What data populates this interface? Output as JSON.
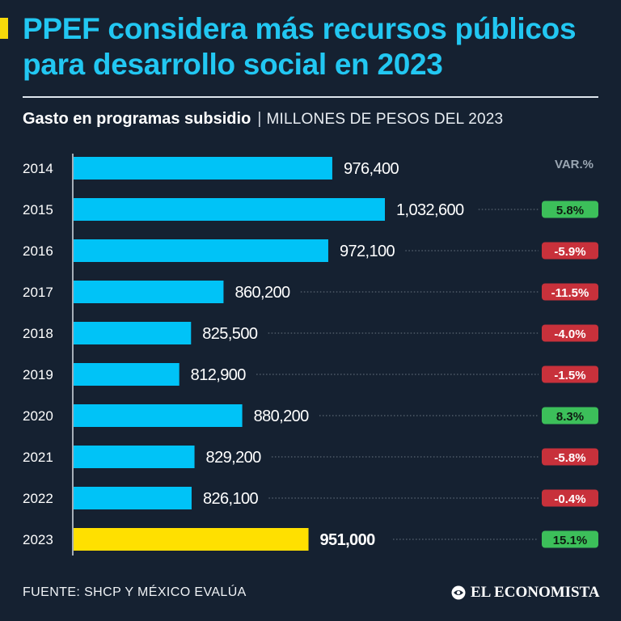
{
  "header": {
    "title": "PPEF considera más recursos públicos para desarrollo social en 2023",
    "subtitle": "Gasto en programas subsidio",
    "separator": "|",
    "unit": "MILLONES DE PESOS DEL 2023"
  },
  "footer": {
    "source": "FUENTE: SHCP Y MÉXICO EVALÚA",
    "brand": "EL ECONOMISTA"
  },
  "colors": {
    "background": "#152131",
    "title": "#22c7f2",
    "bar": "#00c3f7",
    "highlight_bar": "#ffe000",
    "positive": "#3cbf5a",
    "negative": "#c8313b"
  },
  "chart_data": {
    "type": "bar",
    "orientation": "horizontal",
    "categories": [
      "2014",
      "2015",
      "2016",
      "2017",
      "2018",
      "2019",
      "2020",
      "2021",
      "2022",
      "2023"
    ],
    "values": [
      976400,
      1032600,
      972100,
      860200,
      825500,
      812900,
      880200,
      829200,
      826100,
      951000
    ],
    "value_labels": [
      "976,400",
      "1,032,600",
      "972,100",
      "860,200",
      "825,500",
      "812,900",
      "880,200",
      "829,200",
      "826,100",
      "951,000"
    ],
    "highlight_category": "2023",
    "variation_header": "VAR.%",
    "variation": [
      "",
      "5.8%",
      "-5.9%",
      "-11.5%",
      "-4.0%",
      "-1.5%",
      "8.3%",
      "-5.8%",
      "-0.4%",
      "15.1%"
    ],
    "variation_values": [
      null,
      5.8,
      -5.9,
      -11.5,
      -4.0,
      -1.5,
      8.3,
      -5.8,
      -0.4,
      15.1
    ],
    "xlim": [
      700000,
      1100000
    ],
    "grid": false,
    "legend": "none"
  }
}
